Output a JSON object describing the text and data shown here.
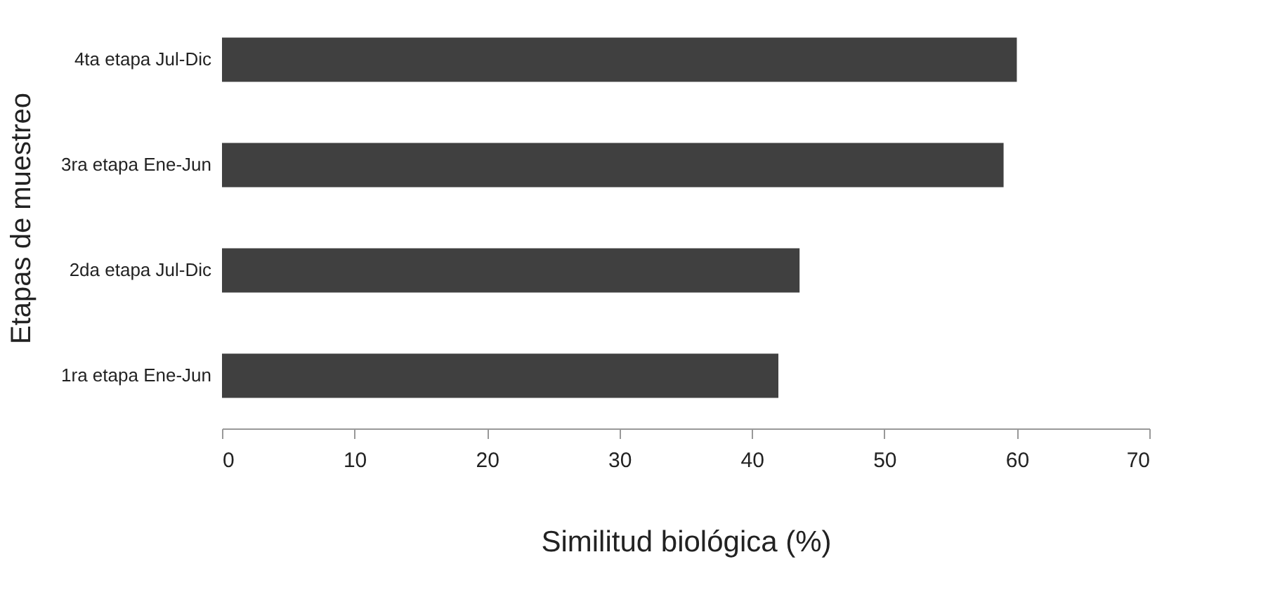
{
  "chart_data": {
    "type": "bar",
    "orientation": "horizontal",
    "xlabel": "Similitud biológica (%)",
    "ylabel": "Etapas de muestreo",
    "categories": [
      "4ta etapa Jul-Dic",
      "3ra etapa Ene-Jun",
      "2da etapa Jul-Dic",
      "1ra etapa Ene-Jun"
    ],
    "values": [
      60,
      59,
      43.6,
      42
    ],
    "color": "#404040",
    "xlim": [
      0,
      70
    ],
    "xticks": [
      0,
      10,
      20,
      30,
      40,
      50,
      60,
      70
    ],
    "grid": false
  }
}
